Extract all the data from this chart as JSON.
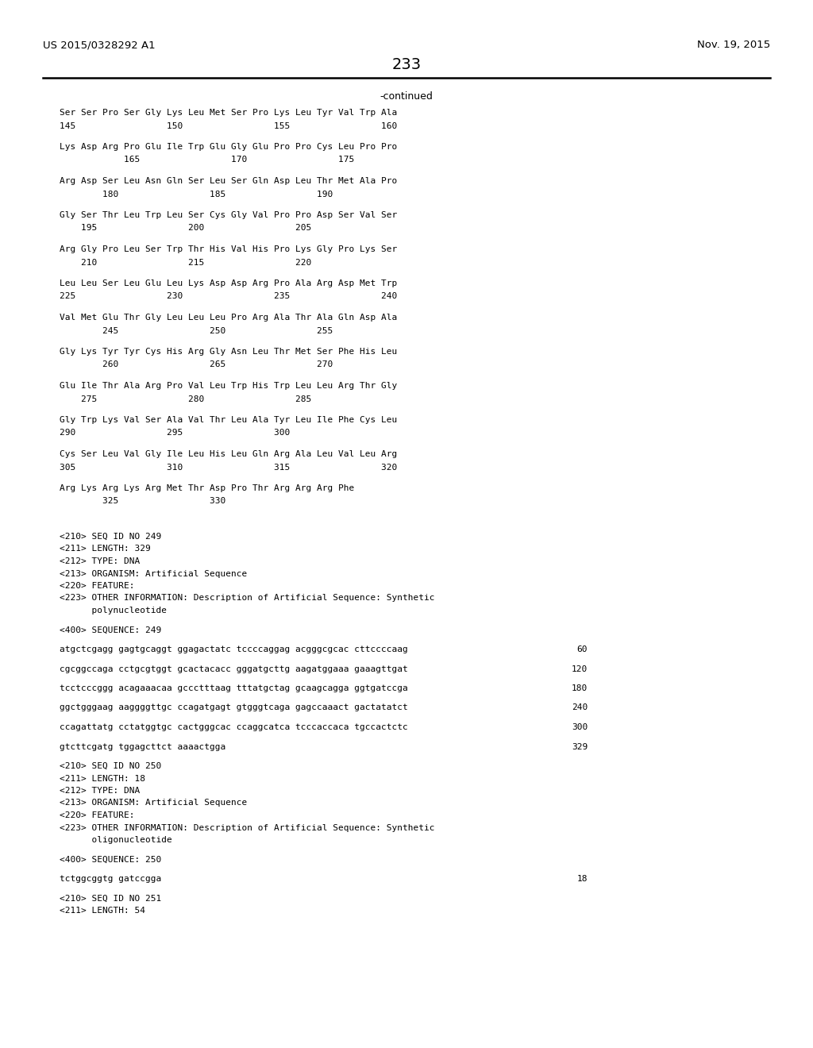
{
  "header_left": "US 2015/0328292 A1",
  "header_right": "Nov. 19, 2015",
  "page_number": "233",
  "continued_label": "-continued",
  "background_color": "#ffffff",
  "text_color": "#000000",
  "content_lines": [
    {
      "type": "seq2",
      "line1": "Ser Ser Pro Ser Gly Lys Leu Met Ser Pro Lys Leu Tyr Val Trp Ala",
      "line2": "145                 150                 155                 160"
    },
    {
      "type": "seq2",
      "line1": "Lys Asp Arg Pro Glu Ile Trp Glu Gly Glu Pro Pro Cys Leu Pro Pro",
      "line2": "            165                 170                 175"
    },
    {
      "type": "seq2",
      "line1": "Arg Asp Ser Leu Asn Gln Ser Leu Ser Gln Asp Leu Thr Met Ala Pro",
      "line2": "        180                 185                 190"
    },
    {
      "type": "seq2",
      "line1": "Gly Ser Thr Leu Trp Leu Ser Cys Gly Val Pro Pro Asp Ser Val Ser",
      "line2": "    195                 200                 205"
    },
    {
      "type": "seq2",
      "line1": "Arg Gly Pro Leu Ser Trp Thr His Val His Pro Lys Gly Pro Lys Ser",
      "line2": "    210                 215                 220"
    },
    {
      "type": "seq2",
      "line1": "Leu Leu Ser Leu Glu Leu Lys Asp Asp Arg Pro Ala Arg Asp Met Trp",
      "line2": "225                 230                 235                 240"
    },
    {
      "type": "seq2",
      "line1": "Val Met Glu Thr Gly Leu Leu Leu Pro Arg Ala Thr Ala Gln Asp Ala",
      "line2": "        245                 250                 255"
    },
    {
      "type": "seq2",
      "line1": "Gly Lys Tyr Tyr Cys His Arg Gly Asn Leu Thr Met Ser Phe His Leu",
      "line2": "        260                 265                 270"
    },
    {
      "type": "seq2",
      "line1": "Glu Ile Thr Ala Arg Pro Val Leu Trp His Trp Leu Leu Arg Thr Gly",
      "line2": "    275                 280                 285"
    },
    {
      "type": "seq2",
      "line1": "Gly Trp Lys Val Ser Ala Val Thr Leu Ala Tyr Leu Ile Phe Cys Leu",
      "line2": "290                 295                 300"
    },
    {
      "type": "seq2",
      "line1": "Cys Ser Leu Val Gly Ile Leu His Leu Gln Arg Ala Leu Val Leu Arg",
      "line2": "305                 310                 315                 320"
    },
    {
      "type": "seq2",
      "line1": "Arg Lys Arg Lys Arg Met Thr Asp Pro Thr Arg Arg Arg Phe",
      "line2": "        325                 330"
    },
    {
      "type": "blank"
    },
    {
      "type": "blank"
    },
    {
      "type": "mono",
      "text": "<210> SEQ ID NO 249"
    },
    {
      "type": "mono",
      "text": "<211> LENGTH: 329"
    },
    {
      "type": "mono",
      "text": "<212> TYPE: DNA"
    },
    {
      "type": "mono",
      "text": "<213> ORGANISM: Artificial Sequence"
    },
    {
      "type": "mono",
      "text": "<220> FEATURE:"
    },
    {
      "type": "mono",
      "text": "<223> OTHER INFORMATION: Description of Artificial Sequence: Synthetic"
    },
    {
      "type": "mono",
      "text": "      polynucleotide"
    },
    {
      "type": "blank"
    },
    {
      "type": "mono",
      "text": "<400> SEQUENCE: 249"
    },
    {
      "type": "blank"
    },
    {
      "type": "dna",
      "text": "atgctcgagg gagtgcaggt ggagactatc tccccaggag acgggcgcac cttccccaag",
      "num": "60"
    },
    {
      "type": "blank"
    },
    {
      "type": "dna",
      "text": "cgcggccaga cctgcgtggt gcactacacc gggatgcttg aagatggaaa gaaagttgat",
      "num": "120"
    },
    {
      "type": "blank"
    },
    {
      "type": "dna",
      "text": "tcctcccggg acagaaacaa gccctttaag tttatgctag gcaagcagga ggtgatccga",
      "num": "180"
    },
    {
      "type": "blank"
    },
    {
      "type": "dna",
      "text": "ggctgggaag aaggggttgc ccagatgagt gtgggtcaga gagccaaact gactatatct",
      "num": "240"
    },
    {
      "type": "blank"
    },
    {
      "type": "dna",
      "text": "ccagattatg cctatggtgc cactgggcac ccaggcatca tcccaccaca tgccactctc",
      "num": "300"
    },
    {
      "type": "blank"
    },
    {
      "type": "dna",
      "text": "gtcttcgatg tggagcttct aaaactgga",
      "num": "329"
    },
    {
      "type": "blank"
    },
    {
      "type": "mono",
      "text": "<210> SEQ ID NO 250"
    },
    {
      "type": "mono",
      "text": "<211> LENGTH: 18"
    },
    {
      "type": "mono",
      "text": "<212> TYPE: DNA"
    },
    {
      "type": "mono",
      "text": "<213> ORGANISM: Artificial Sequence"
    },
    {
      "type": "mono",
      "text": "<220> FEATURE:"
    },
    {
      "type": "mono",
      "text": "<223> OTHER INFORMATION: Description of Artificial Sequence: Synthetic"
    },
    {
      "type": "mono",
      "text": "      oligonucleotide"
    },
    {
      "type": "blank"
    },
    {
      "type": "mono",
      "text": "<400> SEQUENCE: 250"
    },
    {
      "type": "blank"
    },
    {
      "type": "dna",
      "text": "tctggcggtg gatccgga",
      "num": "18"
    },
    {
      "type": "blank"
    },
    {
      "type": "mono",
      "text": "<210> SEQ ID NO 251"
    },
    {
      "type": "mono",
      "text": "<211> LENGTH: 54"
    }
  ]
}
